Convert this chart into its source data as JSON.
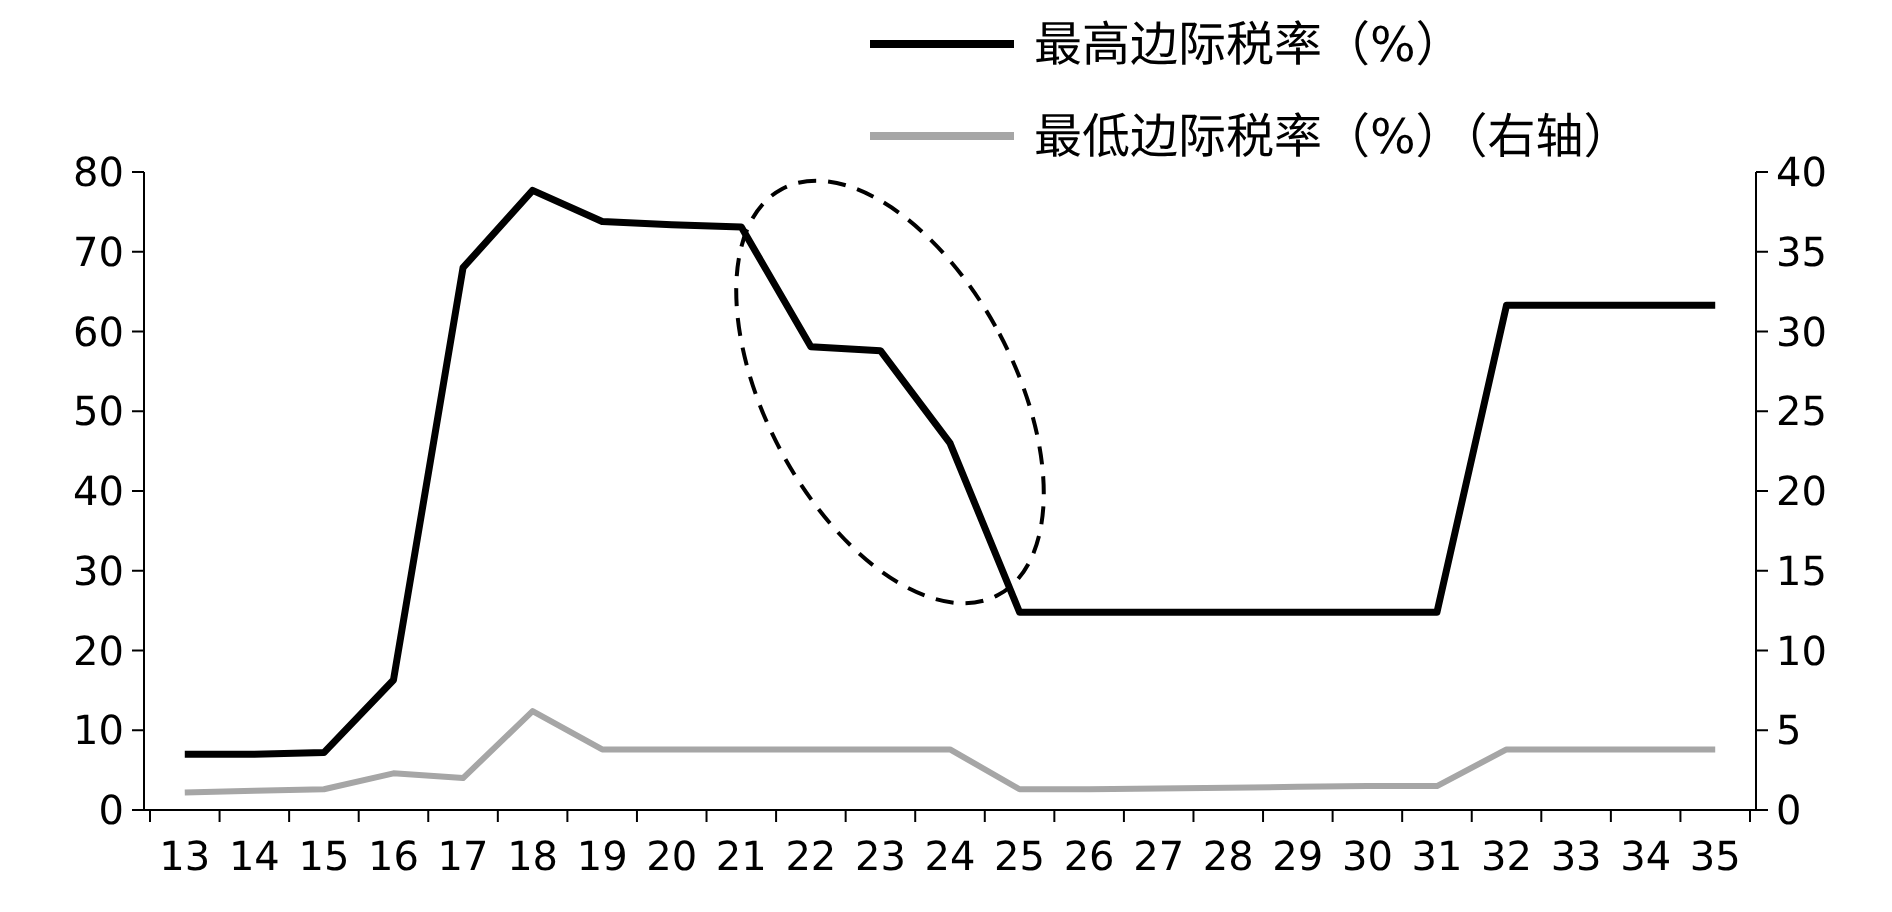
{
  "chart_data": {
    "type": "line",
    "categories": [
      "13",
      "14",
      "15",
      "16",
      "17",
      "18",
      "19",
      "20",
      "21",
      "22",
      "23",
      "24",
      "25",
      "26",
      "27",
      "28",
      "29",
      "30",
      "31",
      "32",
      "33",
      "34",
      "35"
    ],
    "series": [
      {
        "name": "最高边际税率（%）",
        "color": "#000000",
        "values": [
          7,
          7,
          7.2,
          16.3,
          68,
          77.7,
          73.8,
          73.4,
          73.1,
          58.1,
          57.6,
          46,
          24.8,
          24.8,
          24.8,
          24.8,
          24.8,
          24.8,
          24.8,
          63.3,
          63.3,
          63.3,
          63.3
        ]
      },
      {
        "name": "最低边际税率（%）（右轴）",
        "color": "#a6a6a6",
        "axis": "y2",
        "values": [
          1.1,
          1.2,
          1.3,
          2.3,
          2,
          6.2,
          3.8,
          3.8,
          3.8,
          3.8,
          3.8,
          3.8,
          1.3,
          1.3,
          1.35,
          1.4,
          1.45,
          1.5,
          1.5,
          3.8,
          3.8,
          3.8,
          3.8
        ]
      }
    ],
    "ylim": [
      0,
      80
    ],
    "yticks": [
      0,
      10,
      20,
      30,
      40,
      50,
      60,
      70,
      80
    ],
    "y2lim": [
      0,
      40
    ],
    "y2ticks": [
      0,
      5,
      10,
      15,
      20,
      25,
      30,
      35,
      40
    ],
    "legend": "top right",
    "grid": false,
    "marker": "none",
    "line_style": "solid"
  }
}
